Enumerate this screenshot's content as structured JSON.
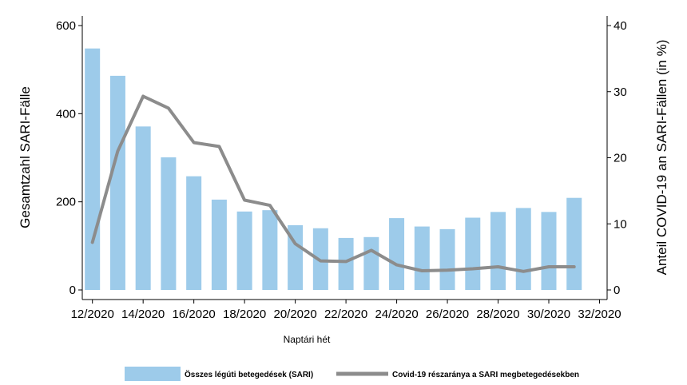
{
  "chart_data": {
    "type": "bar",
    "xlabel": "Naptári hét",
    "ylabel_left": "Gesamtzahl SARI-Fälle",
    "ylabel_right": "Anteil COVID-19 an SARI-Fällen (in %)",
    "ylim_left": [
      0,
      600
    ],
    "ylim_right": [
      0,
      40
    ],
    "yticks_left": [
      0,
      200,
      400,
      600
    ],
    "yticks_right": [
      0,
      10,
      20,
      30,
      40
    ],
    "xticks": [
      12,
      14,
      16,
      18,
      20,
      22,
      24,
      26,
      28,
      30,
      32
    ],
    "xtick_labels": [
      "12/2020",
      "14/2020",
      "16/2020",
      "18/2020",
      "20/2020",
      "22/2020",
      "24/2020",
      "26/2020",
      "28/2020",
      "30/2020",
      "32/2020"
    ],
    "weeks": [
      12,
      13,
      14,
      15,
      16,
      17,
      18,
      19,
      20,
      21,
      22,
      23,
      24,
      25,
      26,
      27,
      28,
      29,
      30,
      31
    ],
    "series": [
      {
        "name": "Összes légúti betegedések (SARI)",
        "type": "bar",
        "axis": "left",
        "color": "#9dcbea",
        "values": [
          548,
          486,
          371,
          301,
          258,
          205,
          178,
          181,
          147,
          140,
          118,
          120,
          163,
          144,
          138,
          164,
          177,
          186,
          177,
          209
        ]
      },
      {
        "name": "Covid-19 részaránya a SARI megbetegedésekben",
        "type": "line",
        "axis": "right",
        "color": "#8c8c8c",
        "values": [
          7.2,
          21.0,
          29.3,
          27.5,
          22.3,
          21.7,
          13.6,
          12.8,
          7.0,
          4.4,
          4.3,
          6.0,
          3.8,
          2.9,
          3.0,
          3.2,
          3.5,
          2.8,
          3.5,
          3.5
        ]
      }
    ],
    "legend_position": "bottom",
    "grid": false
  }
}
